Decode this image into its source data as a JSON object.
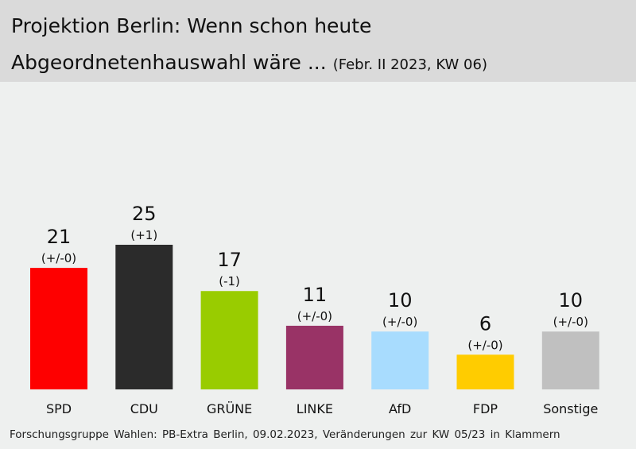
{
  "header": {
    "title_line1": "Projektion Berlin: Wenn schon heute",
    "title_line2": "Abgeordnetenhauswahl wäre ...",
    "subtitle": "(Febr. II 2023, KW 06)"
  },
  "chart_data": {
    "type": "bar",
    "categories": [
      "SPD",
      "CDU",
      "GRÜNE",
      "LINKE",
      "AfD",
      "FDP",
      "Sonstige"
    ],
    "values": [
      21,
      25,
      17,
      11,
      10,
      6,
      10
    ],
    "changes": [
      "(+/-0)",
      "(+1)",
      "(-1)",
      "(+/-0)",
      "(+/-0)",
      "(+/-0)",
      "(+/-0)"
    ],
    "colors": [
      "#fe0000",
      "#2b2b2b",
      "#99cc00",
      "#993366",
      "#a8dcfe",
      "#ffcc00",
      "#c0c0c0"
    ],
    "ylim": [
      0,
      25
    ],
    "grid": false,
    "legend": "none"
  },
  "footer": {
    "source": "Forschungsgruppe Wahlen: PB-Extra Berlin, 09.02.2023, Veränderungen zur KW 05/23 in Klammern"
  }
}
